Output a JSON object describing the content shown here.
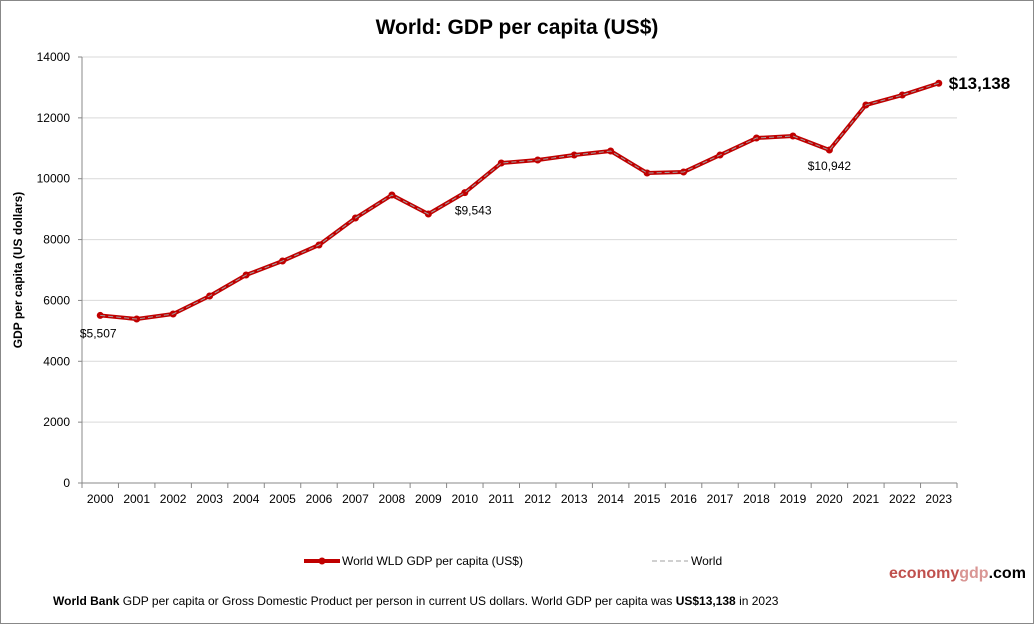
{
  "chart_data": {
    "type": "line",
    "title": "World: GDP per capita (US$)",
    "ylabel": "GDP per capita (US dollars)",
    "xlabel": "",
    "ylim": [
      0,
      14000
    ],
    "yticks": [
      0,
      2000,
      4000,
      6000,
      8000,
      10000,
      12000,
      14000
    ],
    "grid": true,
    "legend_placement": "bottom",
    "categories": [
      "2000",
      "2001",
      "2002",
      "2003",
      "2004",
      "2005",
      "2006",
      "2007",
      "2008",
      "2009",
      "2010",
      "2011",
      "2012",
      "2013",
      "2014",
      "2015",
      "2016",
      "2017",
      "2018",
      "2019",
      "2020",
      "2021",
      "2022",
      "2023"
    ],
    "series": [
      {
        "name": "World WLD GDP per capita (US$)",
        "color": "#c00000",
        "values": [
          5507,
          5389,
          5554,
          6145,
          6835,
          7295,
          7821,
          8708,
          9464,
          8840,
          9543,
          10516,
          10614,
          10778,
          10910,
          10187,
          10220,
          10778,
          11337,
          11403,
          10942,
          12422,
          12750,
          13138
        ]
      },
      {
        "name": "World",
        "color": "#a0a0a0",
        "style": "dashed",
        "values": [
          5507,
          5389,
          5554,
          6145,
          6835,
          7295,
          7821,
          8708,
          9464,
          8840,
          9543,
          10516,
          10614,
          10778,
          10910,
          10187,
          10220,
          10778,
          11337,
          11403,
          10942,
          12422,
          12750,
          13138
        ]
      }
    ],
    "annotations": [
      {
        "category": "2000",
        "text": "$5,507"
      },
      {
        "category": "2010",
        "text": "$9,543"
      },
      {
        "category": "2020",
        "text": "$10,942"
      },
      {
        "category": "2023",
        "text": "$13,138"
      }
    ]
  },
  "branding": {
    "part1": "economy",
    "part2": "gdp",
    "part3": ".com"
  },
  "footer": {
    "source": "World Bank",
    "text1": " GDP per capita or Gross Domestic Product per person  in current US dollars.   World GDP per capita was ",
    "highlight": "US$13,138",
    "text2": "  in 2023"
  }
}
